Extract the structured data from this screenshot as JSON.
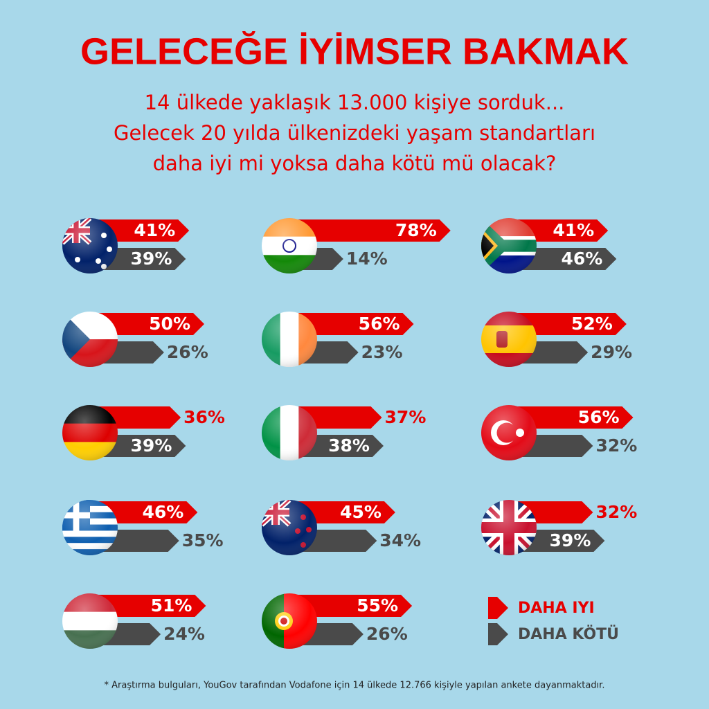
{
  "title": "GELECEĞE İYİMSER BAKMAK",
  "subtitle": [
    "14 ülkede yaklaşık 13.000 kişiye sorduk...",
    "Gelecek 20 yılda ülkenizdeki yaşam standartları",
    "daha iyi mi yoksa daha kötü mü olacak?"
  ],
  "chart_data": {
    "type": "bar",
    "series": [
      {
        "name": "DAHA IYI",
        "color": "#e60000",
        "values": [
          41,
          78,
          41,
          50,
          56,
          52,
          36,
          37,
          56,
          46,
          45,
          32,
          51,
          55
        ],
        "value_labels": [
          "41%",
          "78%",
          "41%",
          "50%",
          "56%",
          "52%",
          "36%",
          "37%",
          "56%",
          "46%",
          "45%",
          "32%",
          "51%",
          "55%"
        ]
      },
      {
        "name": "DAHA KÖTÜ",
        "color": "#4a4a4a",
        "values": [
          39,
          14,
          46,
          26,
          23,
          29,
          39,
          38,
          32,
          35,
          34,
          39,
          24,
          26
        ],
        "value_labels": [
          "39%",
          "14%",
          "46%",
          "26%",
          "23%",
          "29%",
          "39%",
          "38%",
          "32%",
          "35%",
          "34%",
          "39%",
          "24%",
          "26%"
        ]
      }
    ]
  },
  "footnote": "* Araştırma bulguları, YouGov tarafından Vodafone için 14 ülkede 12.766 kişiyle yapılan ankete dayanmaktadır."
}
